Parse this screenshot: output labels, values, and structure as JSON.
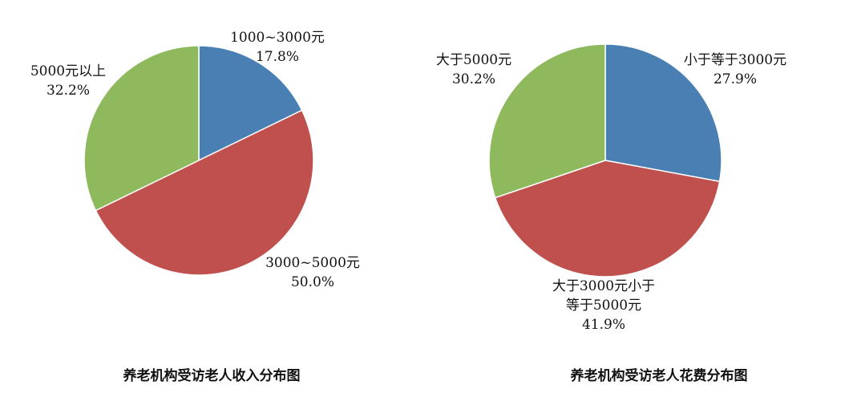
{
  "colors": {
    "blue": "#4a7fb3",
    "red": "#c0504d",
    "green": "#8fb95d",
    "stroke": "#ffffff"
  },
  "chart_data": [
    {
      "type": "pie",
      "title": "养老机构受访老人收入分布图",
      "slices": [
        {
          "category": "1000~3000元",
          "value": 17.8,
          "value_label": "17.8%",
          "color": "#4a7fb3"
        },
        {
          "category": "3000~5000元",
          "value": 50.0,
          "value_label": "50.0%",
          "color": "#c0504d"
        },
        {
          "category": "5000元以上",
          "value": 32.2,
          "value_label": "32.2%",
          "color": "#8fb95d"
        }
      ]
    },
    {
      "type": "pie",
      "title": "养老机构受访老人花费分布图",
      "slices": [
        {
          "category": "小于等于3000元",
          "value": 27.9,
          "value_label": "27.9%",
          "color": "#4a7fb3"
        },
        {
          "category": "大于3000元小于等于5000元",
          "category_lines": [
            "大于3000元小于",
            "等于5000元"
          ],
          "value": 41.9,
          "value_label": "41.9%",
          "color": "#c0504d"
        },
        {
          "category": "大于5000元",
          "value": 30.2,
          "value_label": "30.2%",
          "color": "#8fb95d"
        }
      ]
    }
  ]
}
